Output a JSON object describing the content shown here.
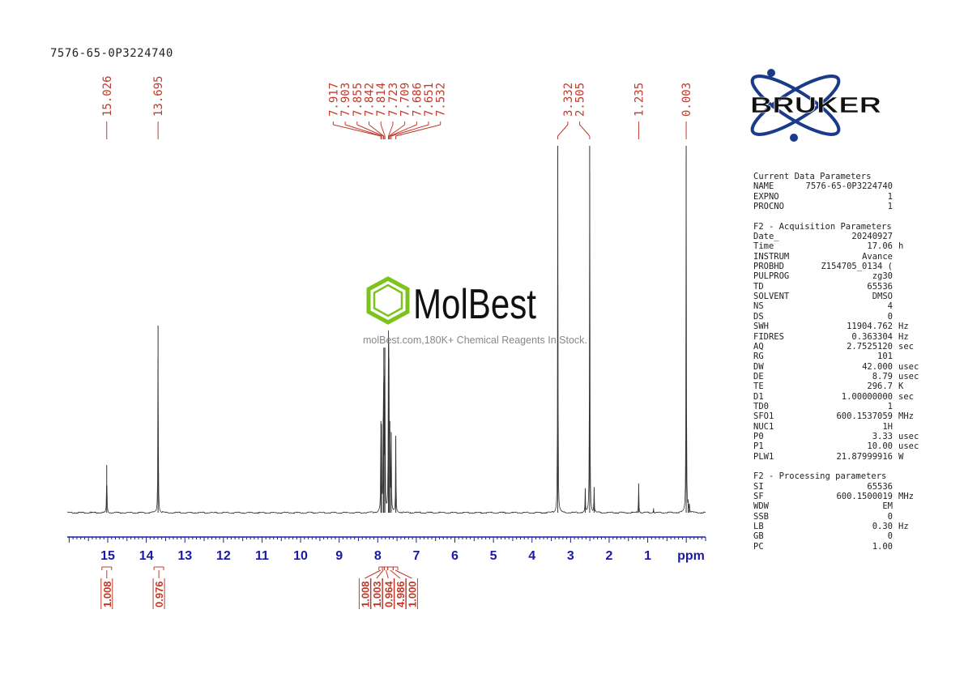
{
  "sample_title": "7576-65-0P3224740",
  "watermark": {
    "brand": "MolBest",
    "tagline": "molBest.com,180K+ Chemical Reagents In Stock."
  },
  "bruker_logo_text": "BRUKER",
  "colors": {
    "peak_label": "#c0392b",
    "axis": "#1a1aa6",
    "spectrum": "#333333",
    "logo_blue": "#1a3a8a",
    "molbest_green": "#7dc31b"
  },
  "parameters": {
    "current": {
      "title": "Current Data Parameters",
      "rows": [
        {
          "key": "NAME",
          "value": "7576-65-0P3224740",
          "unit": ""
        },
        {
          "key": "EXPNO",
          "value": "1",
          "unit": ""
        },
        {
          "key": "PROCNO",
          "value": "1",
          "unit": ""
        }
      ]
    },
    "acquisition": {
      "title": "F2 - Acquisition Parameters",
      "rows": [
        {
          "key": "Date_",
          "value": "20240927",
          "unit": ""
        },
        {
          "key": "Time",
          "value": "17.06",
          "unit": "h"
        },
        {
          "key": "INSTRUM",
          "value": "Avance",
          "unit": ""
        },
        {
          "key": "PROBHD",
          "value": "Z154705_0134 (",
          "unit": ""
        },
        {
          "key": "PULPROG",
          "value": "zg30",
          "unit": ""
        },
        {
          "key": "TD",
          "value": "65536",
          "unit": ""
        },
        {
          "key": "SOLVENT",
          "value": "DMSO",
          "unit": ""
        },
        {
          "key": "NS",
          "value": "4",
          "unit": ""
        },
        {
          "key": "DS",
          "value": "0",
          "unit": ""
        },
        {
          "key": "SWH",
          "value": "11904.762",
          "unit": "Hz"
        },
        {
          "key": "FIDRES",
          "value": "0.363304",
          "unit": "Hz"
        },
        {
          "key": "AQ",
          "value": "2.7525120",
          "unit": "sec"
        },
        {
          "key": "RG",
          "value": "101",
          "unit": ""
        },
        {
          "key": "DW",
          "value": "42.000",
          "unit": "usec"
        },
        {
          "key": "DE",
          "value": "8.79",
          "unit": "usec"
        },
        {
          "key": "TE",
          "value": "296.7",
          "unit": "K"
        },
        {
          "key": "D1",
          "value": "1.00000000",
          "unit": "sec"
        },
        {
          "key": "TD0",
          "value": "1",
          "unit": ""
        },
        {
          "key": "SFO1",
          "value": "600.1537059",
          "unit": "MHz"
        },
        {
          "key": "NUC1",
          "value": "1H",
          "unit": ""
        },
        {
          "key": "P0",
          "value": "3.33",
          "unit": "usec"
        },
        {
          "key": "P1",
          "value": "10.00",
          "unit": "usec"
        },
        {
          "key": "PLW1",
          "value": "21.87999916",
          "unit": "W"
        }
      ]
    },
    "processing": {
      "title": "F2 - Processing parameters",
      "rows": [
        {
          "key": "SI",
          "value": "65536",
          "unit": ""
        },
        {
          "key": "SF",
          "value": "600.1500019",
          "unit": "MHz"
        },
        {
          "key": "WDW",
          "value": "EM",
          "unit": ""
        },
        {
          "key": "SSB",
          "value": "0",
          "unit": ""
        },
        {
          "key": "LB",
          "value": "0.30",
          "unit": "Hz"
        },
        {
          "key": "GB",
          "value": "0",
          "unit": ""
        },
        {
          "key": "PC",
          "value": "1.00",
          "unit": ""
        }
      ]
    }
  },
  "chart_data": {
    "type": "line",
    "title": "",
    "xlabel": "ppm",
    "ylabel": "",
    "xlim": [
      16.05,
      -0.5
    ],
    "ylim": [
      0,
      1
    ],
    "x_reversed": true,
    "grid": false,
    "x_ticks": [
      15,
      14,
      13,
      12,
      11,
      10,
      9,
      8,
      7,
      6,
      5,
      4,
      3,
      2,
      1
    ],
    "peaks": [
      {
        "ppm": 15.026,
        "height": 0.13,
        "label": "15.026"
      },
      {
        "ppm": 13.695,
        "height": 0.51,
        "label": "13.695"
      },
      {
        "ppm": 7.917,
        "height": 0.25,
        "label": "7.917"
      },
      {
        "ppm": 7.903,
        "height": 0.22,
        "label": "7.903"
      },
      {
        "ppm": 7.855,
        "height": 0.26,
        "label": "7.855"
      },
      {
        "ppm": 7.842,
        "height": 0.45,
        "label": "7.842"
      },
      {
        "ppm": 7.814,
        "height": 0.45,
        "label": "7.814"
      },
      {
        "ppm": 7.723,
        "height": 0.42,
        "label": "7.723"
      },
      {
        "ppm": 7.709,
        "height": 0.42,
        "label": "7.709"
      },
      {
        "ppm": 7.686,
        "height": 0.25,
        "label": "7.686"
      },
      {
        "ppm": 7.651,
        "height": 0.22,
        "label": "7.651"
      },
      {
        "ppm": 7.532,
        "height": 0.21,
        "label": "7.532"
      },
      {
        "ppm": 3.332,
        "height": 1.0,
        "label": "3.332"
      },
      {
        "ppm": 2.505,
        "height": 1.0,
        "label": "2.505"
      },
      {
        "ppm": 1.235,
        "height": 0.08,
        "label": "1.235"
      },
      {
        "ppm": 0.003,
        "height": 1.0,
        "label": "0.003"
      }
    ],
    "minor_peaks": [
      {
        "ppm": 2.62,
        "height": 0.065
      },
      {
        "ppm": 2.39,
        "height": 0.07
      },
      {
        "ppm": 0.85,
        "height": 0.012
      },
      {
        "ppm": -0.05,
        "height": 0.025
      },
      {
        "ppm": -0.08,
        "height": 0.02
      }
    ],
    "integrals": [
      {
        "from": 15.15,
        "to": 14.9,
        "value": "1.008"
      },
      {
        "from": 13.8,
        "to": 13.55,
        "value": "0.976"
      },
      {
        "from": 7.97,
        "to": 7.88,
        "value": "1.008"
      },
      {
        "from": 7.88,
        "to": 7.83,
        "value": "1.003"
      },
      {
        "from": 7.83,
        "to": 7.74,
        "value": "0.964"
      },
      {
        "from": 7.74,
        "to": 7.6,
        "value": "4.986"
      },
      {
        "from": 7.6,
        "to": 7.48,
        "value": "1.000"
      }
    ]
  }
}
